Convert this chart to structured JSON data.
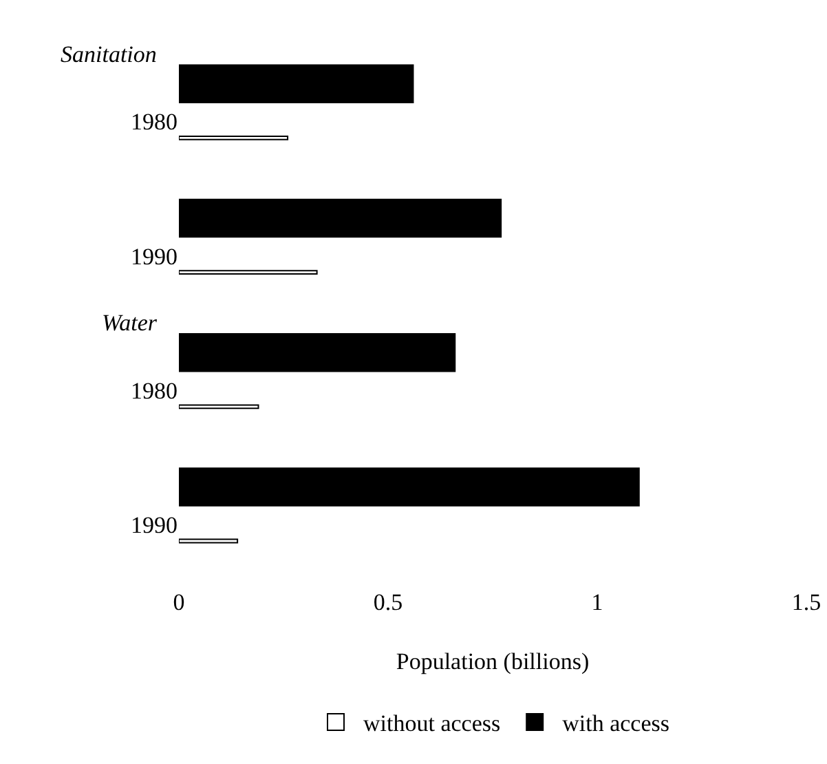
{
  "chart_data": {
    "type": "bar",
    "orientation": "horizontal",
    "categories": [
      "1980",
      "1990",
      "1980",
      "1990"
    ],
    "series": [
      {
        "name": "without access",
        "color": "#ffffff",
        "values": [
          0.26,
          0.33,
          0.19,
          0.14
        ]
      },
      {
        "name": "with access",
        "color": "#000000",
        "values": [
          0.56,
          0.77,
          0.66,
          1.1
        ]
      }
    ],
    "xlabel": "Population (billions)",
    "xlim": [
      0,
      1.5
    ],
    "xticks": [
      0,
      0.5,
      1,
      1.5
    ],
    "annotations": [
      "Sanitation",
      "Water"
    ],
    "grid": false,
    "legend": "bottom"
  }
}
